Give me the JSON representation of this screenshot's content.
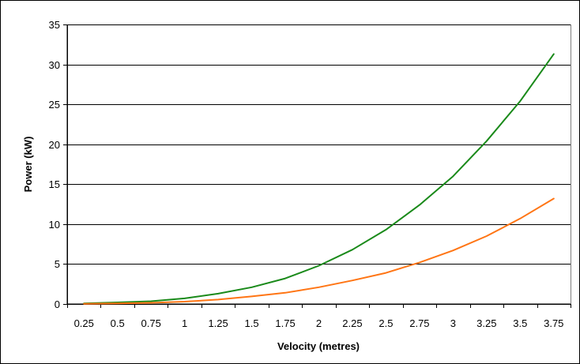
{
  "chart_data": {
    "type": "line",
    "title": "",
    "xlabel": "Velocity (metres)",
    "ylabel": "Power (kW)",
    "categories": [
      "0.25",
      "0.5",
      "0.75",
      "1",
      "1.25",
      "1.5",
      "1.75",
      "2",
      "2.25",
      "2.5",
      "2.75",
      "3",
      "3.25",
      "3.5",
      "3.75"
    ],
    "yticks": [
      "0",
      "5",
      "10",
      "15",
      "20",
      "25",
      "30",
      "35"
    ],
    "ylim": [
      0,
      35
    ],
    "grid": true,
    "legend": "none",
    "series": [
      {
        "color": "#1a8a1a",
        "values": [
          0.07,
          0.2,
          0.35,
          0.7,
          1.3,
          2.1,
          3.2,
          4.8,
          6.8,
          9.3,
          12.4,
          16.0,
          20.4,
          25.4,
          31.3
        ]
      },
      {
        "color": "#ff7514",
        "values": [
          0.03,
          0.08,
          0.15,
          0.3,
          0.55,
          0.95,
          1.4,
          2.1,
          2.95,
          3.9,
          5.2,
          6.7,
          8.5,
          10.7,
          13.2
        ]
      }
    ]
  }
}
